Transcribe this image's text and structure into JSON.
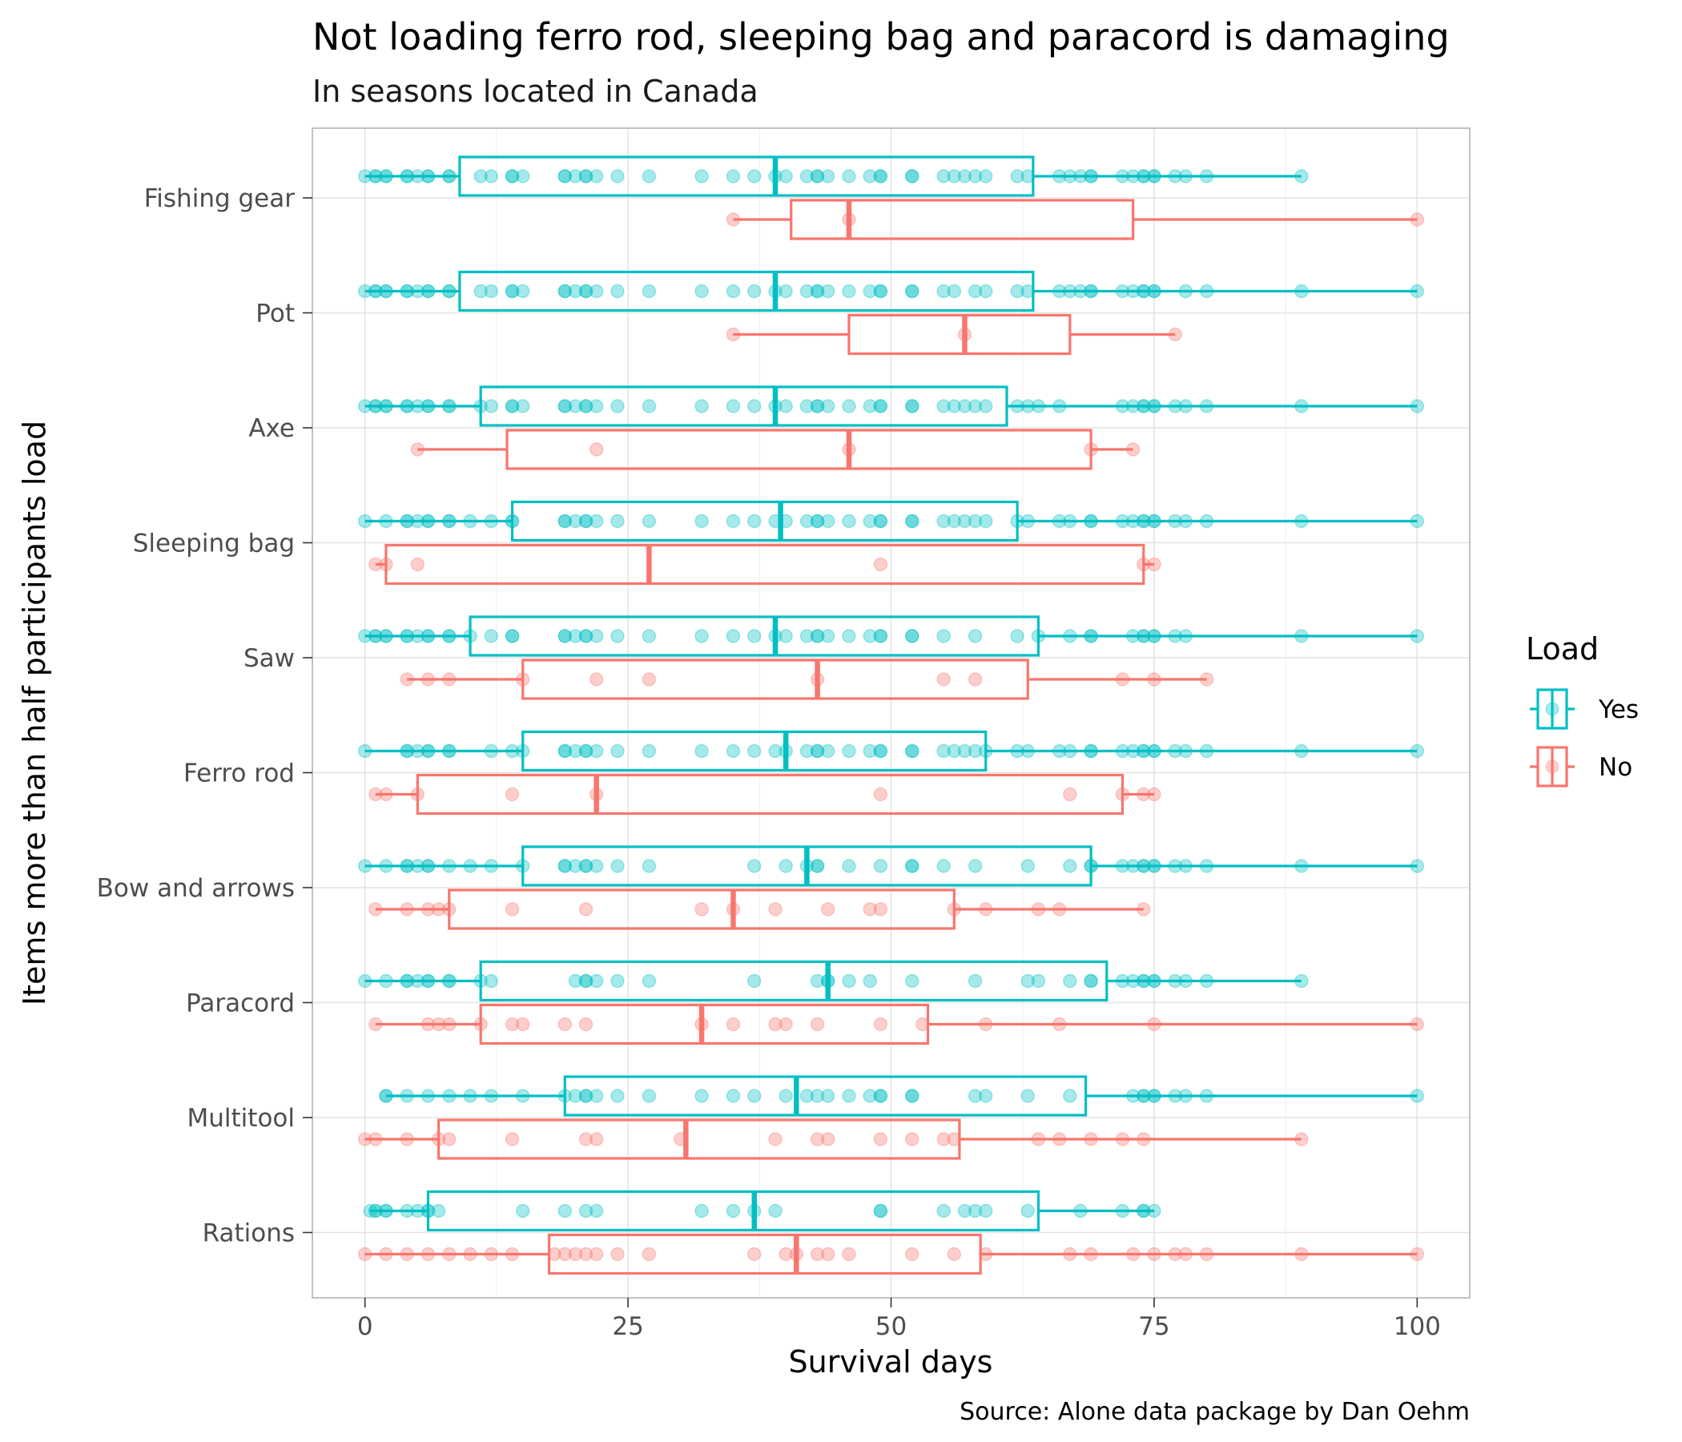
{
  "chart_data": {
    "type": "boxplot",
    "orientation": "horizontal",
    "title": "Not loading ferro rod, sleeping bag and paracord is damaging",
    "subtitle": "In seasons located in Canada",
    "xlabel": "Survival days",
    "ylabel": "Items more than half participants load",
    "caption": "Source: Alone data package by Dan Oehm",
    "xlim": [
      -5,
      105
    ],
    "xticks": [
      0,
      25,
      50,
      75,
      100
    ],
    "grid": true,
    "legend": {
      "title": "Load",
      "position": "right",
      "entries": [
        {
          "label": "Yes",
          "color": "#00BFC4"
        },
        {
          "label": "No",
          "color": "#F8766D"
        }
      ]
    },
    "categories": [
      "Fishing gear",
      "Pot",
      "Axe",
      "Sleeping bag",
      "Saw",
      "Ferro rod",
      "Bow and arrows",
      "Paracord",
      "Multitool",
      "Rations"
    ],
    "series": [
      {
        "name": "Yes",
        "color": "#00BFC4",
        "boxes": [
          {
            "category": "Fishing gear",
            "min": 0,
            "q1": 9,
            "median": 39,
            "q3": 63.5,
            "max": 89,
            "points": [
              0,
              1,
              1,
              2,
              2,
              4,
              4,
              5,
              6,
              6,
              8,
              8,
              11,
              12,
              14,
              14,
              15,
              19,
              19,
              20,
              21,
              21,
              22,
              24,
              27,
              32,
              35,
              37,
              39,
              40,
              42,
              43,
              43,
              44,
              46,
              48,
              49,
              49,
              52,
              52,
              55,
              56,
              57,
              58,
              59,
              62,
              63,
              66,
              67,
              68,
              69,
              69,
              72,
              73,
              74,
              74,
              75,
              75,
              77,
              78,
              80,
              89
            ]
          },
          {
            "category": "Pot",
            "min": 0,
            "q1": 9,
            "median": 39,
            "q3": 63.5,
            "max": 100,
            "points": [
              0,
              1,
              1,
              2,
              2,
              4,
              4,
              5,
              6,
              6,
              8,
              8,
              11,
              12,
              14,
              14,
              15,
              19,
              19,
              20,
              21,
              21,
              22,
              24,
              27,
              32,
              35,
              37,
              39,
              40,
              42,
              43,
              43,
              44,
              46,
              48,
              49,
              49,
              52,
              52,
              55,
              56,
              58,
              59,
              62,
              63,
              66,
              67,
              68,
              69,
              69,
              72,
              73,
              74,
              74,
              75,
              75,
              78,
              80,
              89,
              100
            ]
          },
          {
            "category": "Axe",
            "min": 0,
            "q1": 11,
            "median": 39,
            "q3": 61,
            "max": 100,
            "points": [
              0,
              1,
              1,
              2,
              2,
              4,
              4,
              5,
              6,
              6,
              8,
              8,
              11,
              12,
              14,
              14,
              15,
              19,
              19,
              20,
              21,
              21,
              22,
              24,
              27,
              32,
              35,
              37,
              39,
              40,
              42,
              43,
              43,
              44,
              46,
              48,
              49,
              49,
              52,
              52,
              55,
              56,
              57,
              58,
              59,
              62,
              63,
              64,
              66,
              72,
              73,
              74,
              74,
              75,
              75,
              77,
              78,
              80,
              89,
              100
            ]
          },
          {
            "category": "Sleeping bag",
            "min": 0,
            "q1": 14,
            "median": 39.5,
            "q3": 62,
            "max": 100,
            "points": [
              0,
              2,
              4,
              4,
              5,
              6,
              6,
              8,
              8,
              10,
              12,
              14,
              14,
              19,
              19,
              20,
              21,
              21,
              22,
              24,
              27,
              32,
              35,
              37,
              39,
              40,
              42,
              43,
              43,
              44,
              46,
              48,
              49,
              49,
              52,
              52,
              55,
              56,
              57,
              58,
              59,
              62,
              63,
              66,
              67,
              69,
              69,
              72,
              73,
              74,
              74,
              75,
              75,
              77,
              78,
              80,
              89,
              100
            ]
          },
          {
            "category": "Saw",
            "min": 0,
            "q1": 10,
            "median": 39,
            "q3": 64,
            "max": 100,
            "points": [
              0,
              1,
              1,
              2,
              2,
              4,
              4,
              5,
              6,
              6,
              8,
              8,
              10,
              12,
              14,
              14,
              19,
              19,
              20,
              21,
              21,
              22,
              24,
              27,
              32,
              35,
              37,
              39,
              40,
              42,
              43,
              43,
              44,
              46,
              48,
              49,
              49,
              52,
              52,
              55,
              58,
              62,
              64,
              67,
              69,
              69,
              73,
              74,
              74,
              75,
              75,
              77,
              78,
              89,
              100
            ]
          },
          {
            "category": "Ferro rod",
            "min": 0,
            "q1": 15,
            "median": 40,
            "q3": 59,
            "max": 100,
            "points": [
              0,
              4,
              4,
              5,
              6,
              6,
              8,
              8,
              12,
              14,
              15,
              19,
              19,
              20,
              21,
              21,
              22,
              24,
              27,
              32,
              35,
              37,
              39,
              40,
              42,
              43,
              43,
              44,
              46,
              48,
              49,
              49,
              52,
              52,
              55,
              56,
              57,
              58,
              59,
              62,
              63,
              66,
              67,
              69,
              69,
              72,
              73,
              74,
              74,
              75,
              75,
              77,
              78,
              80,
              89,
              100
            ]
          },
          {
            "category": "Bow and arrows",
            "min": 0,
            "q1": 15,
            "median": 42,
            "q3": 69,
            "max": 100,
            "points": [
              0,
              2,
              4,
              4,
              5,
              6,
              6,
              8,
              10,
              12,
              15,
              19,
              19,
              20,
              21,
              21,
              22,
              24,
              27,
              37,
              40,
              42,
              43,
              43,
              46,
              49,
              52,
              52,
              55,
              58,
              63,
              67,
              69,
              69,
              72,
              73,
              74,
              74,
              75,
              75,
              77,
              78,
              80,
              89,
              100
            ]
          },
          {
            "category": "Paracord",
            "min": 0,
            "q1": 11,
            "median": 44,
            "q3": 70.5,
            "max": 89,
            "points": [
              0,
              2,
              4,
              4,
              5,
              6,
              6,
              8,
              8,
              11,
              12,
              20,
              21,
              21,
              22,
              24,
              27,
              37,
              43,
              44,
              44,
              46,
              48,
              52,
              58,
              63,
              64,
              67,
              69,
              69,
              72,
              73,
              74,
              74,
              75,
              75,
              77,
              78,
              80,
              89
            ]
          },
          {
            "category": "Multitool",
            "min": 2,
            "q1": 19,
            "median": 41,
            "q3": 68.5,
            "max": 100,
            "points": [
              2,
              2,
              4,
              6,
              8,
              10,
              12,
              15,
              19,
              20,
              21,
              21,
              22,
              24,
              27,
              32,
              35,
              37,
              40,
              42,
              43,
              44,
              46,
              48,
              49,
              49,
              52,
              52,
              58,
              59,
              63,
              67,
              73,
              74,
              74,
              75,
              75,
              77,
              78,
              80,
              100
            ]
          },
          {
            "category": "Rations",
            "min": 0.5,
            "q1": 6,
            "median": 37,
            "q3": 64,
            "max": 75,
            "points": [
              0.5,
              1,
              1,
              2,
              2,
              4,
              5,
              6,
              6,
              7,
              15,
              19,
              21,
              22,
              32,
              35,
              37,
              39,
              49,
              49,
              55,
              57,
              58,
              59,
              63,
              68,
              72,
              74,
              74,
              75
            ]
          }
        ]
      },
      {
        "name": "No",
        "color": "#F8766D",
        "boxes": [
          {
            "category": "Fishing gear",
            "min": 35,
            "q1": 40.5,
            "median": 46,
            "q3": 73,
            "max": 100,
            "points": [
              35,
              46,
              100
            ]
          },
          {
            "category": "Pot",
            "min": 35,
            "q1": 46,
            "median": 57,
            "q3": 67,
            "max": 77,
            "points": [
              35,
              57,
              77
            ]
          },
          {
            "category": "Axe",
            "min": 5,
            "q1": 13.5,
            "median": 46,
            "q3": 69,
            "max": 73,
            "points": [
              5,
              22,
              46,
              69,
              73
            ]
          },
          {
            "category": "Sleeping bag",
            "min": 1,
            "q1": 2,
            "median": 27,
            "q3": 74,
            "max": 75,
            "points": [
              1,
              2,
              5,
              49,
              74,
              75
            ]
          },
          {
            "category": "Saw",
            "min": 4,
            "q1": 15,
            "median": 43,
            "q3": 63,
            "max": 80,
            "points": [
              4,
              6,
              8,
              15,
              22,
              27,
              43,
              55,
              58,
              72,
              75,
              80
            ]
          },
          {
            "category": "Ferro rod",
            "min": 1,
            "q1": 5,
            "median": 22,
            "q3": 72,
            "max": 75,
            "points": [
              1,
              2,
              5,
              14,
              22,
              49,
              67,
              72,
              74,
              75
            ]
          },
          {
            "category": "Bow and arrows",
            "min": 1,
            "q1": 8,
            "median": 35,
            "q3": 56,
            "max": 74,
            "points": [
              1,
              4,
              6,
              7,
              8,
              14,
              21,
              32,
              35,
              39,
              44,
              48,
              49,
              56,
              59,
              64,
              66,
              74
            ]
          },
          {
            "category": "Paracord",
            "min": 1,
            "q1": 11,
            "median": 32,
            "q3": 53.5,
            "max": 100,
            "points": [
              1,
              6,
              7,
              8,
              11,
              14,
              15,
              19,
              21,
              32,
              35,
              39,
              40,
              43,
              49,
              53,
              59,
              66,
              75,
              100
            ]
          },
          {
            "category": "Multitool",
            "min": 0,
            "q1": 7,
            "median": 30.5,
            "q3": 56.5,
            "max": 89,
            "points": [
              0,
              1,
              4,
              7,
              8,
              14,
              21,
              22,
              30,
              39,
              43,
              44,
              49,
              52,
              55,
              56,
              64,
              66,
              69,
              72,
              74,
              89
            ]
          },
          {
            "category": "Rations",
            "min": 0,
            "q1": 17.5,
            "median": 41,
            "q3": 58.5,
            "max": 100,
            "points": [
              0,
              2,
              4,
              6,
              8,
              10,
              12,
              14,
              18,
              19,
              20,
              21,
              22,
              24,
              27,
              37,
              40,
              41,
              43,
              44,
              46,
              52,
              56,
              59,
              67,
              69,
              73,
              75,
              77,
              78,
              80,
              89,
              100
            ]
          }
        ]
      }
    ]
  }
}
